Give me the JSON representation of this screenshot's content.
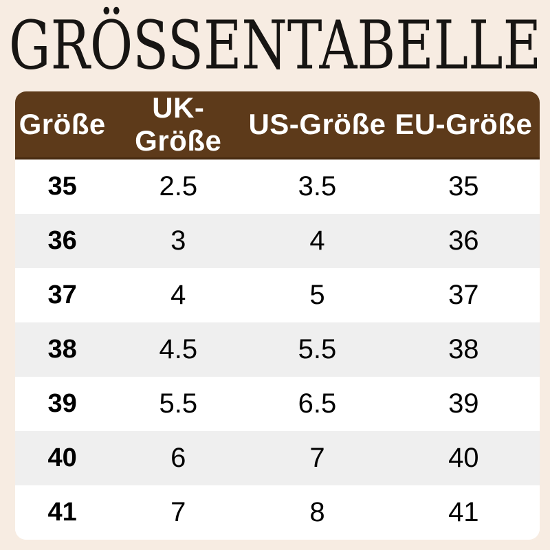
{
  "title": "GRÖSSENTABELLE",
  "chart_data": {
    "type": "table",
    "title": "GRÖSSENTABELLE",
    "headers": [
      "Größe",
      "UK-Größe",
      "US-Größe",
      "EU-Größe"
    ],
    "rows": [
      [
        "35",
        "2.5",
        "3.5",
        "35"
      ],
      [
        "36",
        "3",
        "4",
        "36"
      ],
      [
        "37",
        "4",
        "5",
        "37"
      ],
      [
        "38",
        "4.5",
        "5.5",
        "38"
      ],
      [
        "39",
        "5.5",
        "6.5",
        "39"
      ],
      [
        "40",
        "6",
        "7",
        "40"
      ],
      [
        "41",
        "7",
        "8",
        "41"
      ]
    ],
    "layout": {
      "header_position": "top",
      "zebra_striping": true,
      "grid": false,
      "legend": "none"
    }
  },
  "colors": {
    "page_background": "#f7ece2",
    "header_background": "#5d3a1a",
    "header_border_bottom": "#46290f",
    "header_text": "#ffffff",
    "row_white": "#ffffff",
    "row_alt": "#efefef",
    "body_text": "#000000",
    "title_text": "#171513"
  }
}
